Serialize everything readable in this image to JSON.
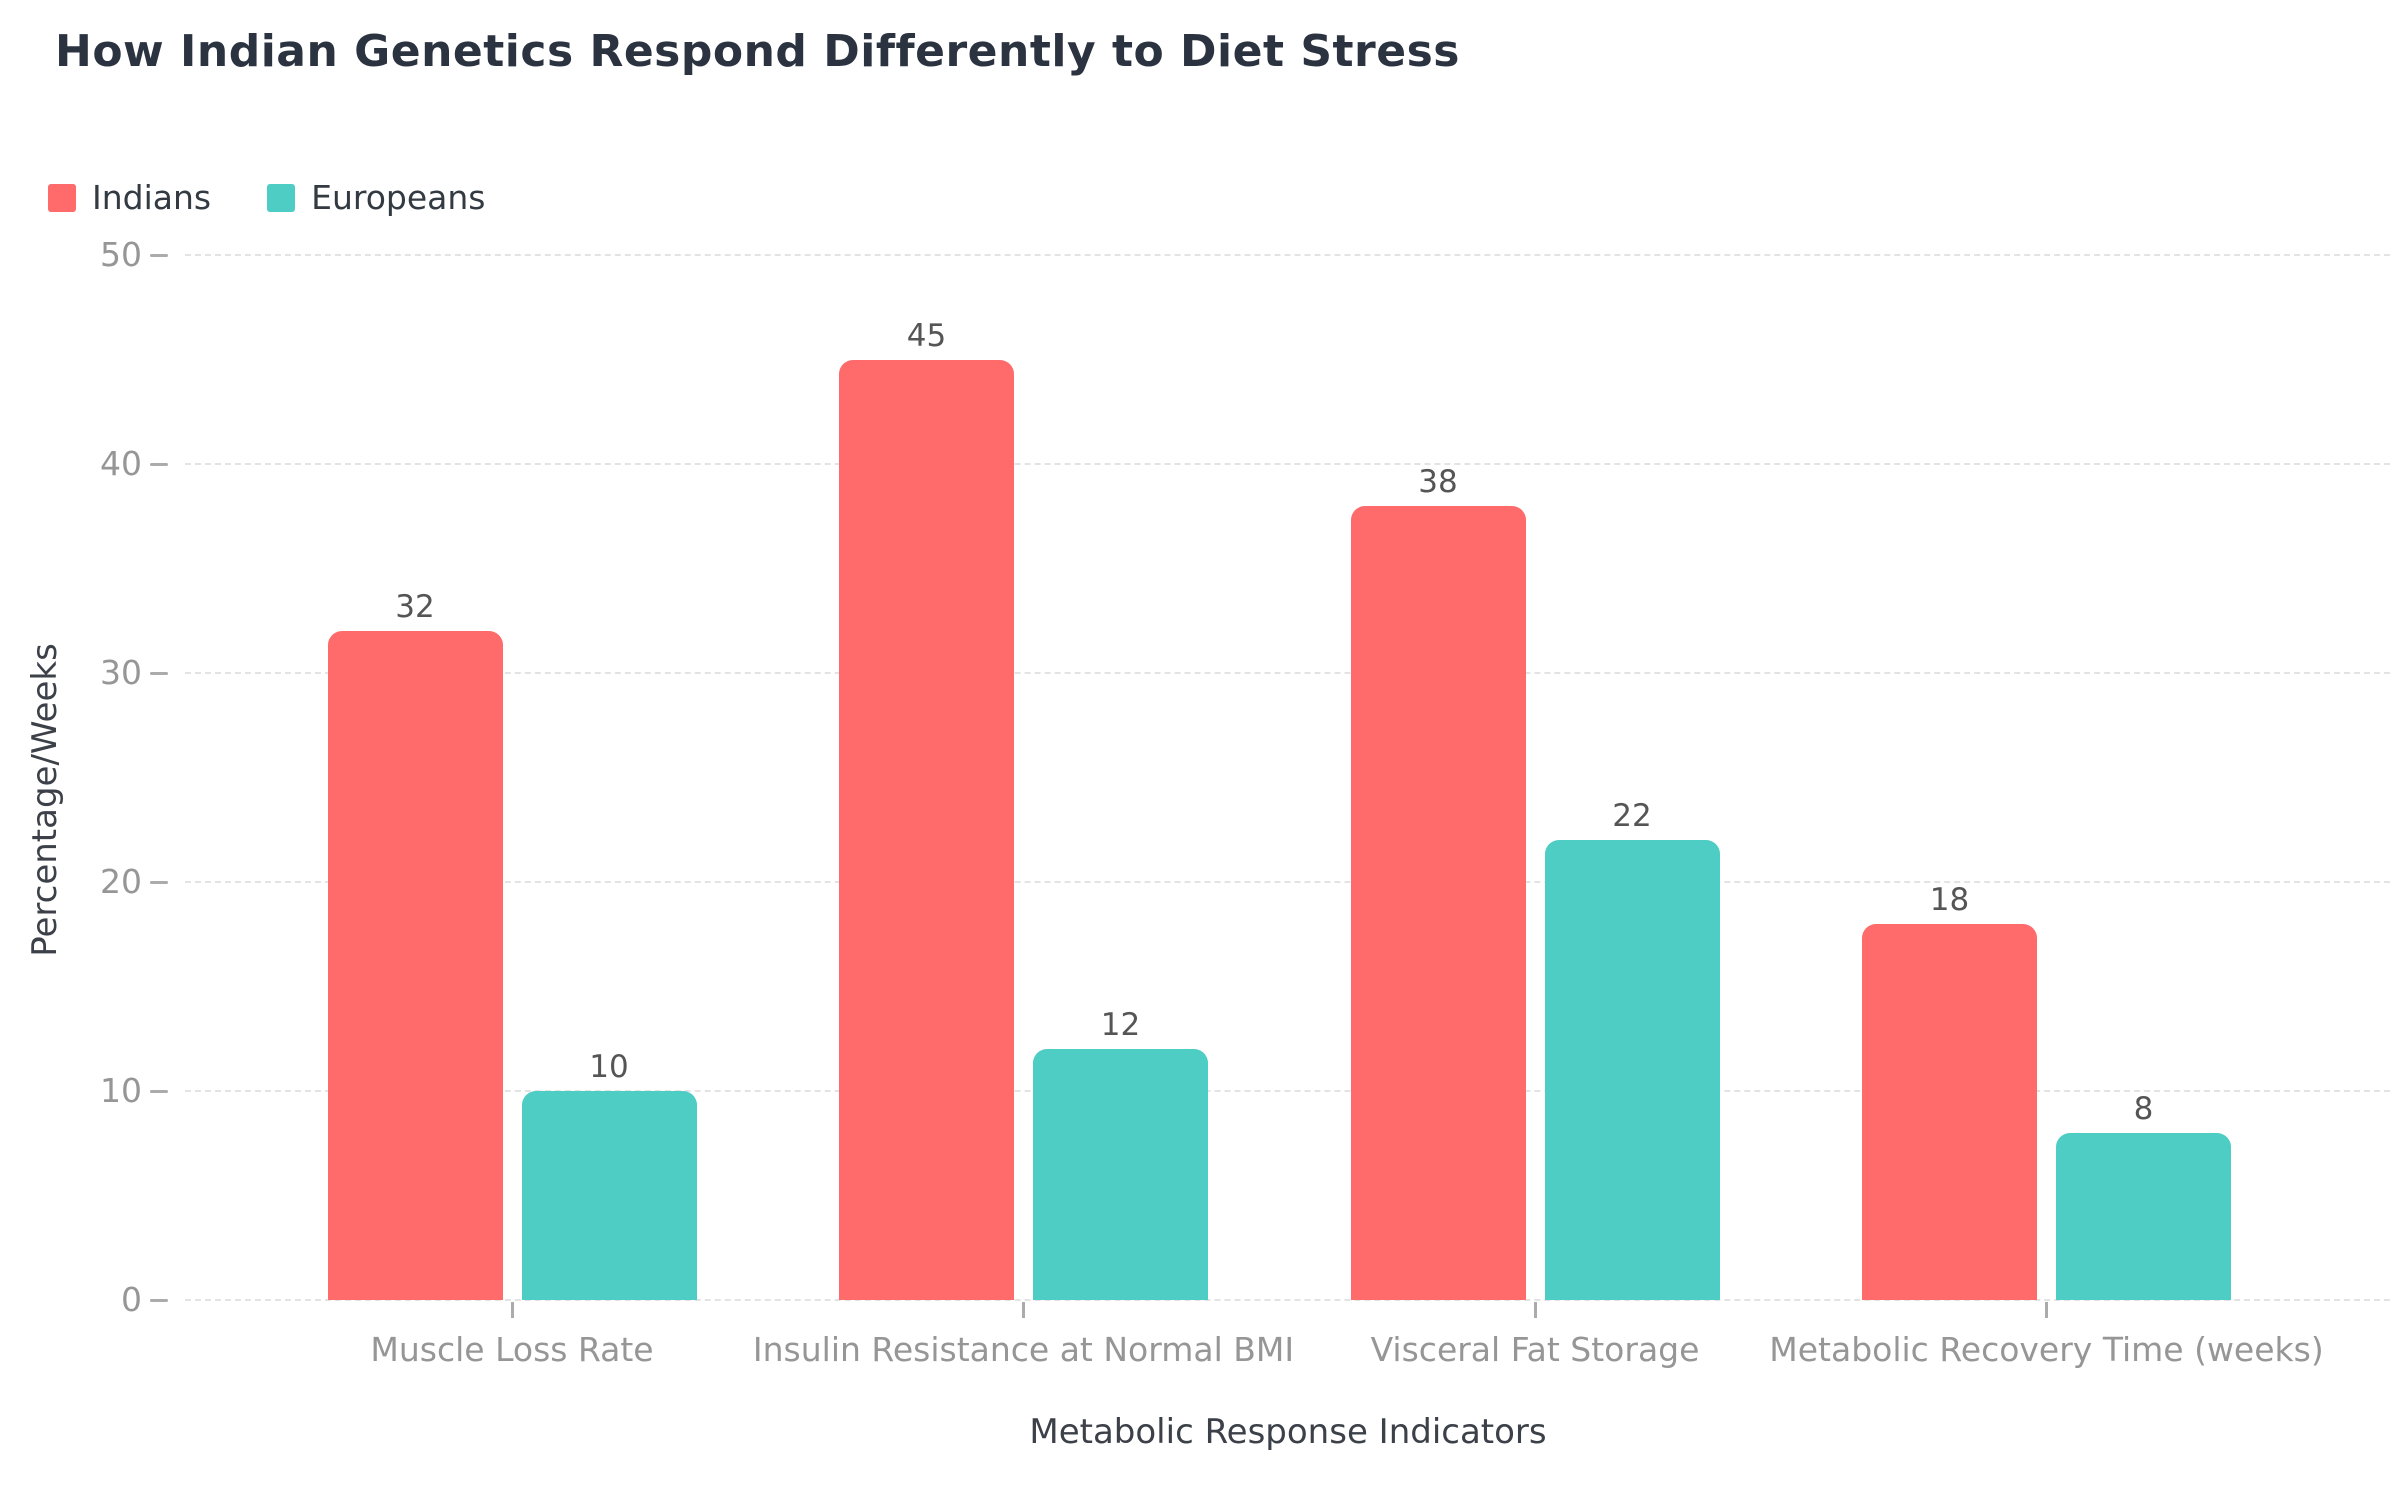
{
  "chart_data": {
    "type": "bar",
    "title": "How Indian Genetics Respond Differently to Diet Stress",
    "xlabel": "Metabolic Response Indicators",
    "ylabel": "Percentage/Weeks",
    "categories": [
      "Muscle Loss Rate",
      "Insulin Resistance at Normal BMI",
      "Visceral Fat Storage",
      "Metabolic Recovery Time (weeks)"
    ],
    "series": [
      {
        "name": "Indians",
        "color": "#FF6B6B",
        "values": [
          32,
          45,
          38,
          18
        ]
      },
      {
        "name": "Europeans",
        "color": "#4ECDC4",
        "values": [
          10,
          12,
          22,
          8
        ]
      }
    ],
    "ylim": [
      0,
      50
    ],
    "yticks": [
      0,
      10,
      20,
      30,
      40,
      50
    ],
    "grid": "horizontal-dashed",
    "legend_position": "top-left",
    "value_labels_shown": true
  },
  "style_colors": {
    "title_text": "#2c3340",
    "axis_title_text": "#3c4048",
    "tick_label_text": "#969696",
    "value_label_text": "#555555",
    "gridline": "#e3e3e3",
    "background": "#ffffff"
  }
}
